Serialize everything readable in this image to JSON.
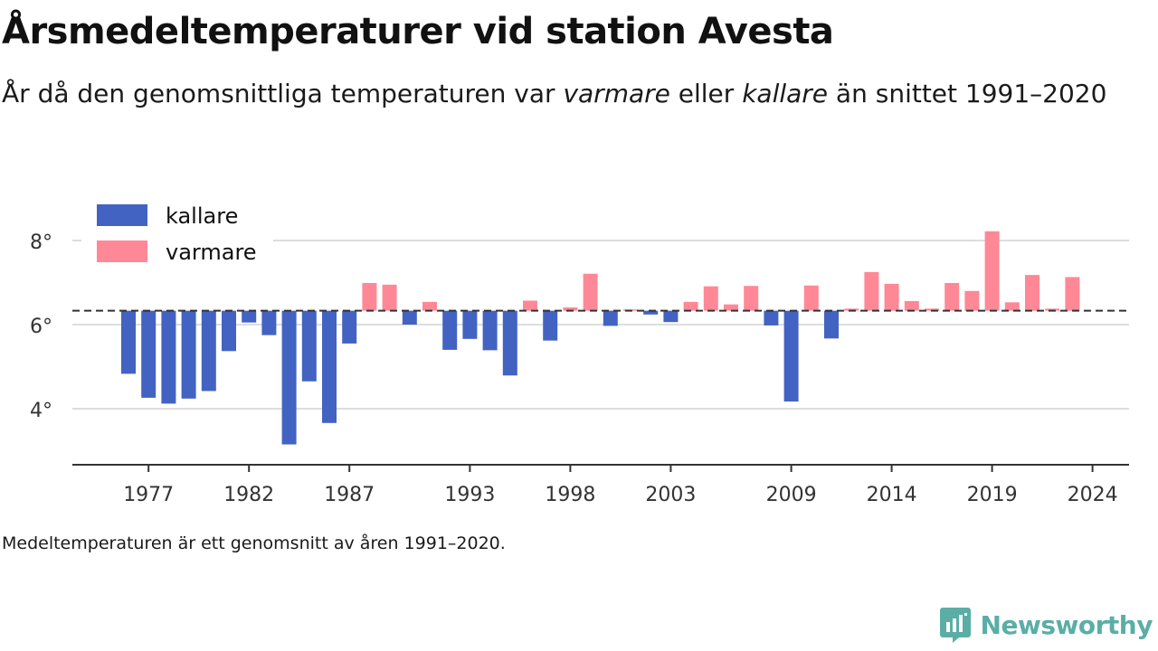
{
  "title": "Årsmedeltemperaturer vid station Avesta",
  "subtitle": {
    "part1": "År då den genomsnittliga temperaturen var ",
    "warm_word": "varmare",
    "part2": " eller ",
    "cold_word": "kallare",
    "part3": " än snittet 1991–2020"
  },
  "note": "Medeltemperaturen är ett genomsnitt av åren 1991–2020.",
  "brand": "Newsworthy",
  "colors": {
    "colder": "#4263c2",
    "warmer": "#ff8896",
    "baseline": "#333333",
    "grid": "#dddddd",
    "brand": "#5aaea6"
  },
  "chart_data": {
    "type": "bar",
    "baseline": 6.33,
    "ylim": [
      2.8,
      9.3
    ],
    "yticks": [
      4,
      6,
      8
    ],
    "ytick_labels": [
      "4°",
      "6°",
      "8°"
    ],
    "xticks": [
      1977,
      1982,
      1987,
      1993,
      1998,
      2003,
      2009,
      2014,
      2019,
      2024
    ],
    "legend": [
      {
        "key": "colder",
        "label": "kallare"
      },
      {
        "key": "warmer",
        "label": "varmare"
      }
    ],
    "legend_position": "top-left",
    "grid": "horizontal",
    "years": [
      1976,
      1977,
      1978,
      1979,
      1980,
      1981,
      1982,
      1983,
      1984,
      1985,
      1986,
      1987,
      1988,
      1989,
      1990,
      1991,
      1992,
      1993,
      1994,
      1995,
      1996,
      1997,
      1998,
      1999,
      2000,
      2001,
      2002,
      2003,
      2004,
      2005,
      2006,
      2007,
      2008,
      2009,
      2010,
      2011,
      2012,
      2013,
      2014,
      2015,
      2016,
      2017,
      2018,
      2019,
      2020,
      2021,
      2022,
      2023,
      2024
    ],
    "values": [
      4.83,
      4.26,
      4.12,
      4.24,
      4.42,
      5.37,
      6.05,
      5.75,
      3.15,
      4.65,
      3.66,
      5.55,
      6.99,
      6.95,
      6.0,
      6.54,
      5.4,
      5.66,
      5.39,
      4.79,
      6.57,
      5.62,
      6.41,
      7.21,
      5.97,
      6.36,
      6.24,
      6.06,
      6.54,
      6.91,
      6.48,
      6.92,
      5.98,
      4.17,
      6.93,
      5.67,
      6.38,
      7.25,
      6.97,
      6.56,
      6.38,
      6.99,
      6.8,
      8.22,
      6.53,
      7.18,
      6.38,
      7.13,
      null
    ]
  }
}
